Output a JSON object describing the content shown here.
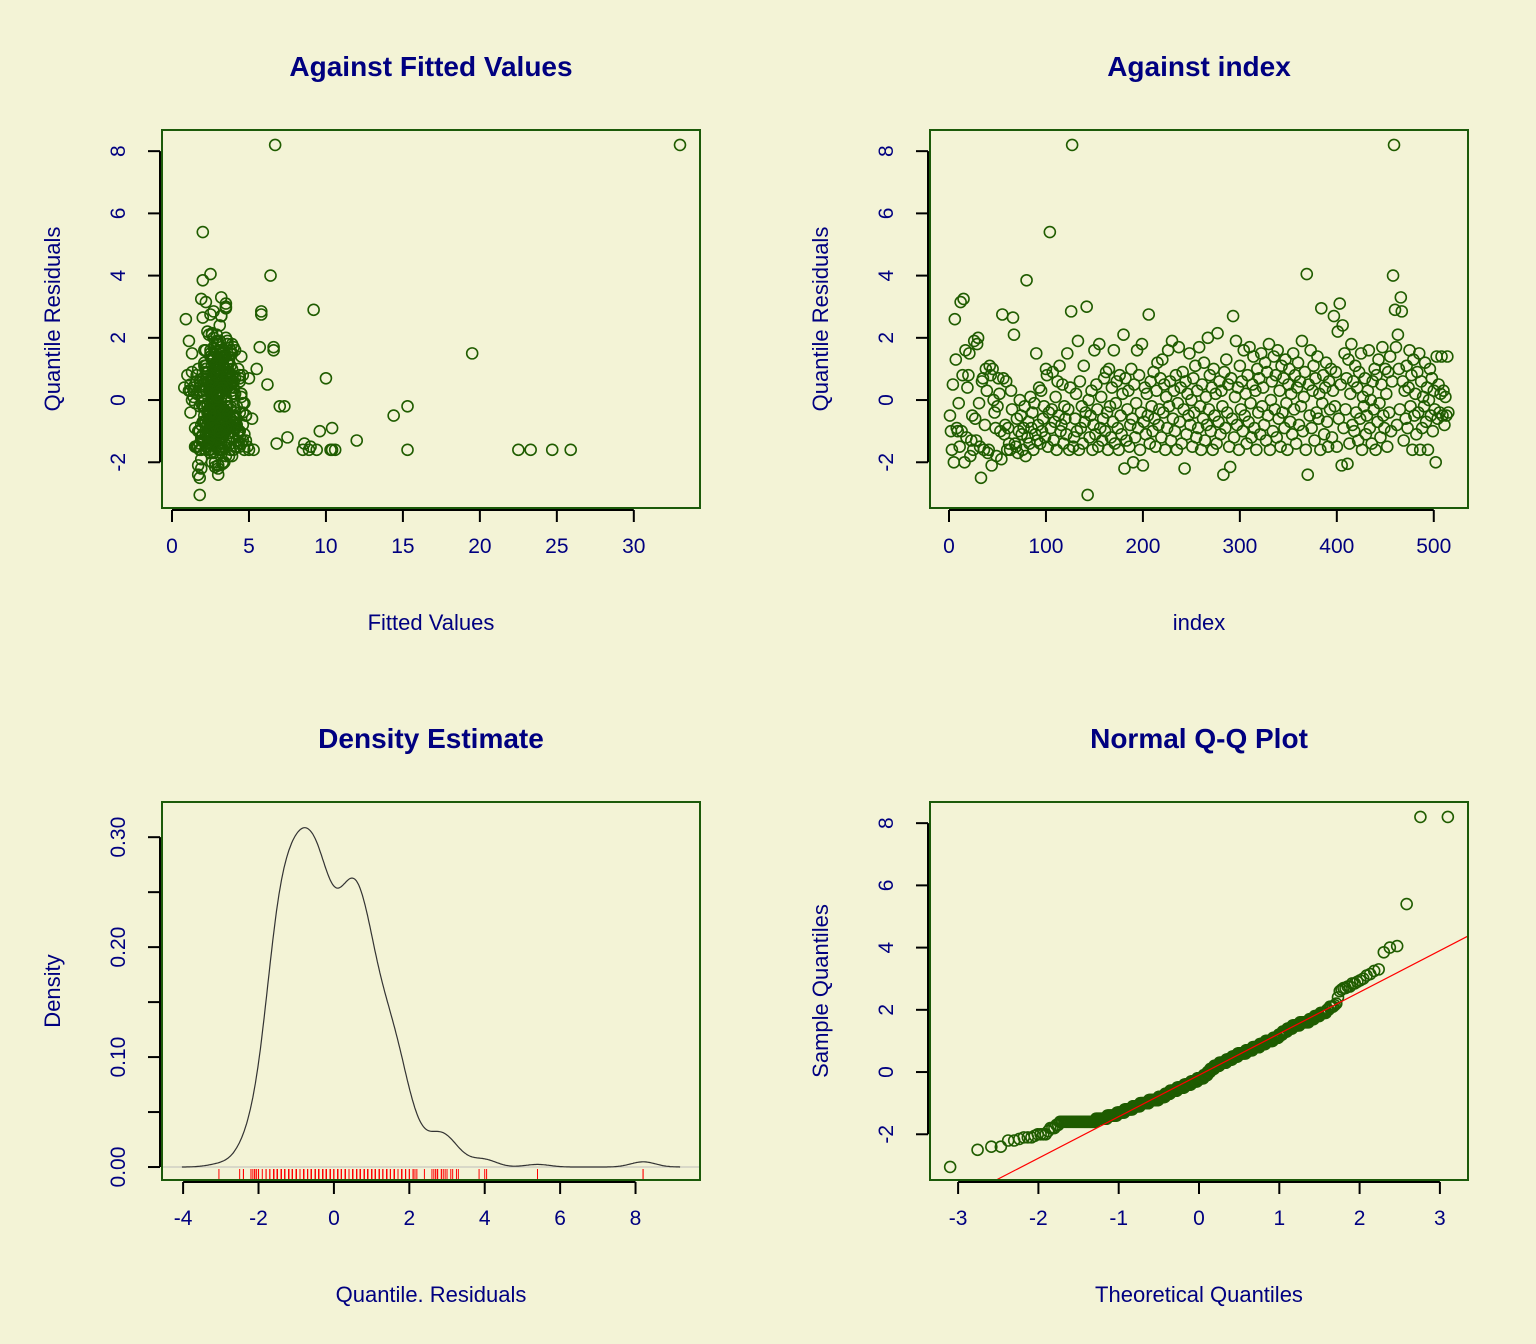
{
  "colors": {
    "background": "#f3f3d6",
    "text": "#000080",
    "frame": "#1b5a0a",
    "points": "#1f5c00",
    "rug": "#ff0000",
    "qqline": "#ff0000",
    "density": "#333333"
  },
  "residuals": [
    -0.5,
    -1.0,
    -1.6,
    0.5,
    -2.0,
    2.6,
    1.3,
    -0.9,
    -1.0,
    -0.1,
    -1.5,
    3.15,
    -1.0,
    0.8,
    3.25,
    -2.0,
    1.6,
    -1.2,
    0.4,
    0.8,
    1.5,
    -1.8,
    -1.3,
    -0.5,
    -1.6,
    1.9,
    -0.6,
    -1.3,
    1.8,
    2.0,
    -0.1,
    -1.5,
    -2.5,
    0.6,
    0.7,
    -1.6,
    -0.8,
    1.0,
    0.3,
    -1.7,
    -1.6,
    1.1,
    0.8,
    -2.1,
    1.0,
    0.0,
    -0.4,
    -0.9,
    -1.8,
    -0.2,
    0.7,
    0.2,
    -1.0,
    -1.9,
    2.75,
    0.7,
    -1.1,
    -0.8,
    0.6,
    -1.6,
    -0.9,
    -1.4,
    -1.6,
    0.3,
    -0.3,
    2.65,
    2.1,
    -1.4,
    -1.5,
    -0.6,
    -1.7,
    -1.0,
    0.0,
    -0.5,
    -1.1,
    -1.6,
    -0.9,
    -0.2,
    -1.8,
    3.85,
    -1.2,
    -0.7,
    -1.4,
    0.1,
    -0.9,
    -0.4,
    -1.6,
    -0.1,
    -1.1,
    1.5,
    -1.3,
    -0.8,
    0.4,
    -1.4,
    0.3,
    -1.0,
    -0.6,
    -0.2,
    -1.2,
    1.0,
    0.8,
    -1.5,
    -0.4,
    5.4,
    -0.9,
    -0.3,
    0.9,
    -1.3,
    -0.7,
    0.1,
    -1.6,
    0.6,
    -0.5,
    1.1,
    -1.0,
    -0.8,
    0.5,
    -1.4,
    -0.2,
    -0.6,
    -1.1,
    1.5,
    -0.3,
    -1.6,
    0.4,
    2.85,
    8.2,
    -1.5,
    -1.2,
    -0.6,
    0.2,
    -1.0,
    1.9,
    -1.6,
    0.6,
    -0.9,
    -0.2,
    -1.4,
    1.1,
    -0.7,
    -0.4,
    3.0,
    -3.05,
    0.0,
    -1.2,
    -0.5,
    0.3,
    -1.6,
    -0.8,
    1.6,
    -1.1,
    0.5,
    -0.3,
    -1.5,
    1.8,
    -0.9,
    0.1,
    -1.3,
    -0.6,
    0.7,
    -1.0,
    0.9,
    -0.4,
    -1.6,
    1.0,
    -0.2,
    -1.2,
    0.4,
    -0.7,
    1.6,
    -1.4,
    -0.1,
    0.6,
    -0.9,
    -1.6,
    0.8,
    -0.5,
    -1.1,
    0.2,
    2.1,
    -2.2,
    0.7,
    -1.3,
    -0.3,
    0.3,
    -1.5,
    -0.8,
    1.0,
    -0.6,
    -2.0,
    0.5,
    -1.2,
    -0.1,
    1.6,
    -0.9,
    0.8,
    -1.6,
    -0.4,
    1.8,
    -2.1,
    -0.7,
    0.4,
    -1.1,
    0.2,
    -0.5,
    2.75,
    -1.4,
    0.6,
    -0.2,
    -1.0,
    0.9,
    -0.6,
    -1.5,
    0.3,
    1.2,
    -0.8,
    -0.3,
    0.7,
    -1.2,
    1.3,
    -0.4,
    0.5,
    -1.6,
    0.1,
    -0.9,
    1.6,
    -0.2,
    0.6,
    -1.3,
    1.9,
    -0.6,
    0.3,
    -1.0,
    0.8,
    -1.6,
    -0.1,
    1.7,
    -0.7,
    0.4,
    -1.4,
    0.9,
    -0.3,
    -2.2,
    0.6,
    -1.1,
    0.2,
    -0.5,
    1.5,
    -0.8,
    0.0,
    -1.5,
    0.7,
    -0.4,
    1.1,
    -1.2,
    0.3,
    -0.9,
    1.7,
    -0.2,
    -1.6,
    0.5,
    -0.6,
    1.2,
    -1.3,
    0.1,
    -0.8,
    2.0,
    -0.3,
    0.8,
    -1.0,
    0.4,
    -1.6,
    1.0,
    -0.5,
    0.2,
    -1.4,
    2.15,
    -0.7,
    0.6,
    -1.1,
    0.3,
    -0.2,
    -2.4,
    0.9,
    -0.9,
    1.3,
    -0.4,
    0.5,
    -1.5,
    -2.15,
    0.7,
    -0.6,
    2.7,
    -1.2,
    0.1,
    1.9,
    -0.8,
    0.4,
    -1.6,
    1.1,
    -0.3,
    0.6,
    -1.0,
    1.6,
    -0.5,
    0.2,
    -1.4,
    0.8,
    -0.7,
    1.7,
    -0.1,
    -1.2,
    0.5,
    1.4,
    -0.9,
    0.3,
    -1.6,
    1.0,
    -0.4,
    0.7,
    -1.1,
    1.5,
    -0.2,
    0.4,
    -0.8,
    1.2,
    -1.3,
    0.9,
    -0.5,
    1.8,
    -1.6,
    0.0,
    0.6,
    -1.0,
    1.4,
    -0.3,
    0.8,
    -1.2,
    1.6,
    -0.6,
    0.3,
    -1.5,
    1.1,
    -0.4,
    0.7,
    -0.9,
    1.3,
    -0.1,
    -1.6,
    0.5,
    1.0,
    -0.7,
    0.2,
    -1.1,
    1.5,
    -0.3,
    0.8,
    -1.4,
    0.4,
    1.2,
    -0.8,
    0.6,
    -0.2,
    1.9,
    -1.0,
    0.1,
    0.9,
    -1.6,
    4.05,
    -2.4,
    0.5,
    -0.5,
    1.6,
    -0.9,
    0.3,
    1.1,
    -1.3,
    0.7,
    -0.4,
    1.4,
    -0.6,
    0.2,
    -1.6,
    2.95,
    -0.1,
    0.8,
    -1.1,
    0.4,
    1.2,
    -0.7,
    -1.5,
    0.6,
    -0.3,
    1.0,
    -1.2,
    0.3,
    2.7,
    -0.2,
    0.9,
    -1.5,
    2.2,
    -0.6,
    3.1,
    0.5,
    -2.1,
    2.4,
    -0.9,
    1.5,
    -0.3,
    0.7,
    -2.05,
    1.3,
    -1.4,
    0.2,
    1.8,
    -0.8,
    0.6,
    -1.0,
    1.1,
    -0.4,
    0.4,
    -1.3,
    0.9,
    -0.6,
    1.5,
    -1.6,
    0.1,
    -0.2,
    0.7,
    -1.1,
    -0.5,
    0.3,
    1.6,
    -0.9,
    0.0,
    -1.4,
    0.6,
    -0.3,
    1.0,
    -1.6,
    0.8,
    -0.7,
    1.3,
    -0.1,
    -1.2,
    0.5,
    1.7,
    -0.5,
    -0.9,
    1.0,
    0.2,
    -1.5,
    0.9,
    -0.4,
    1.4,
    -1.0,
    0.6,
    4.0,
    8.2,
    2.9,
    1.7,
    -0.8,
    2.1,
    1.0,
    -0.3,
    3.3,
    2.85,
    0.6,
    -1.3,
    0.3,
    -0.6,
    1.1,
    -0.9,
    0.4,
    1.6,
    -0.2,
    0.8,
    -1.6,
    1.3,
    -0.5,
    0.2,
    -1.1,
    0.9,
    -0.4,
    1.5,
    -1.6,
    0.6,
    -0.9,
    0.1,
    -0.2,
    1.2,
    -0.7,
    0.4,
    -1.6,
    0.0,
    1.0,
    -0.5,
    0.7,
    -1.0,
    0.3,
    -0.3,
    -2.0,
    1.4,
    -0.6,
    0.5,
    -0.4,
    0.2,
    1.4,
    -0.5,
    0.3,
    -0.8,
    0.1,
    -0.5,
    1.4,
    -0.4
  ],
  "fitted": [
    2.1,
    3.0,
    2.5,
    1.2,
    3.4,
    0.9,
    2.7,
    3.1,
    1.8,
    2.9,
    4.2,
    2.2,
    3.3,
    1.0,
    1.9,
    2.6,
    3.8,
    2.4,
    0.8,
    3.0,
    1.3,
    3.5,
    2.8,
    4.1,
    23.3,
    1.1,
    3.2,
    2.0,
    3.6,
    2.7,
    1.5,
    4.4,
    1.8,
    2.9,
    3.1,
    24.7,
    2.3,
    3.9,
    1.4,
    2.5,
    3.0,
    2.2,
    4.6,
    1.7,
    3.4,
    2.8,
    1.2,
    10.4,
    3.7,
    2.1,
    5.0,
    2.6,
    3.3,
    1.9,
    2.5,
    10.0,
    2.9,
    4.0,
    1.6,
    25.9,
    3.2,
    2.4,
    22.5,
    1.1,
    3.8,
    2.0,
    2.9,
    4.3,
    1.5,
    3.0,
    2.7,
    3.5,
    1.3,
    4.8,
    2.2,
    3.1,
    2.6,
    1.8,
    3.9,
    2.0,
    3.3,
    2.1,
    4.5,
    1.4,
    2.8,
    3.6,
    15.3,
    2.3,
    3.0,
    19.5,
    1.9,
    4.2,
    2.7,
    3.4,
    1.2,
    2.5,
    3.8,
    2.0,
    4.0,
    5.5,
    1.6,
    3.1,
    2.4,
    2.0,
    3.7,
    2.9,
    1.3,
    4.6,
    2.2,
    3.5,
    10.3,
    1.8,
    14.4,
    2.6,
    3.0,
    4.1,
    1.5,
    2.8,
    15.3,
    3.3,
    2.0,
    3.9,
    2.7,
    10.6,
    1.4,
    5.8,
    6.7,
    9.0,
    3.2,
    2.5,
    4.0,
    1.7,
    3.6,
    10.4,
    2.3,
    3.0,
    7.0,
    6.8,
    2.1,
    3.4,
    4.4,
    3.5,
    1.8,
    2.6,
    7.5,
    3.1,
    2.2,
    4.7,
    1.9,
    3.8,
    2.4,
    6.2,
    3.0,
    1.6,
    2.9,
    4.1,
    2.0,
    12.0,
    3.3,
    2.7,
    9.6,
    2.3,
    3.5,
    9.4,
    1.7,
    7.3,
    2.8,
    4.0,
    3.2,
    2.1,
    8.6,
    3.6,
    2.5,
    1.5,
    8.9,
    3.9,
    2.6,
    3.1,
    4.5,
    2.4,
    3.0,
    2.0,
    4.2,
    3.4,
    1.8,
    2.9,
    3.7,
    2.2,
    5.2,
    3.3,
    2.6,
    4.0,
    1.9,
    3.1,
    2.7,
    3.6,
    8.5,
    2.4,
    3.9,
    3.0,
    2.5,
    3.8,
    4.7,
    1.6,
    2.9,
    5.8,
    3.2,
    2.0,
    3.5,
    4.3,
    2.7,
    3.0,
    1.7,
    2.4,
    3.6,
    4.1,
    2.8,
    3.3,
    1.9,
    3.0,
    3.4,
    2.1,
    4.0,
    2.6,
    3.7,
    6.6,
    2.3,
    3.9,
    4.8,
    2.9,
    3.1,
    2.0,
    3.5,
    4.4,
    1.8,
    2.7,
    5.7,
    3.2,
    2.5,
    3.8,
    2.2,
    3.0,
    1.9,
    3.6,
    2.8,
    4.1,
    2.4,
    3.3,
    3.0,
    2.6,
    4.9,
    3.1,
    2.3,
    2.9,
    3.7,
    2.0,
    3.4,
    2.7,
    4.2,
    3.2,
    2.5,
    3.8,
    2.1,
    3.0,
    4.5,
    2.8,
    3.5,
    2.4,
    3.1,
    2.7,
    4.0,
    3.3,
    2.2,
    3.6,
    2.9,
    1.8,
    2.6,
    3.9,
    3.0,
    4.3,
    2.7,
    3.2,
    1.7,
    3.5,
    2.4,
    3.0,
    4.6,
    2.1,
    3.4,
    2.8,
    3.7,
    2.5,
    3.2,
    4.0,
    2.9,
    3.1,
    2.3,
    3.6,
    5.3,
    2.6,
    3.3,
    2.8,
    4.4,
    2.2,
    3.0,
    3.9,
    2.6,
    3.5,
    2.0,
    3.2,
    4.7,
    2.9,
    3.4,
    2.5,
    3.8,
    3.0,
    2.4,
    3.1,
    4.1,
    2.7,
    2.3,
    3.6,
    3.0,
    2.8,
    4.2,
    3.3,
    2.1,
    3.7,
    2.9,
    3.0,
    5.0,
    2.6,
    3.4,
    3.9,
    2.5,
    3.2,
    2.8,
    4.4,
    3.1,
    2.4,
    3.5,
    2.2,
    3.8,
    3.0,
    2.7,
    4.0,
    3.3,
    2.6,
    1.9,
    3.6,
    2.9,
    3.2,
    4.5,
    2.4,
    3.1,
    2.8,
    3.7,
    2.3,
    3.4,
    3.0,
    2.8,
    3.5,
    2.5,
    3.1,
    4.3,
    2.9,
    3.6,
    2.2,
    2.5,
    3.0,
    3.3,
    2.7,
    4.1,
    2.6,
    3.9,
    3.0,
    2.4,
    3.5,
    2.8,
    3.2,
    3.1,
    2.6,
    3.8,
    3.5,
    4.6,
    2.9,
    3.3,
    2.5,
    3.7,
    3.0,
    2.3,
    4.0,
    2.8,
    3.4,
    3.1,
    2.6,
    3.2,
    3.6,
    2.9,
    4.2,
    2.3,
    3.4,
    3.5,
    2.7,
    3.0,
    3.1,
    2.5,
    3.8,
    2.9,
    4.4,
    3.3,
    2.6,
    3.2,
    2.8,
    3.6,
    3.0,
    2.4,
    3.9,
    3.1,
    2.7,
    3.5,
    3.0,
    2.8,
    4.1,
    2.5,
    3.3,
    2.9,
    3.6,
    2.2,
    3.2,
    4.8,
    2.7,
    3.4,
    3.0,
    2.6,
    3.8,
    3.1,
    2.9,
    4.3,
    2.4,
    3.2,
    2.8,
    3.7,
    3.0,
    2.5,
    3.5,
    4.0,
    2.7,
    3.3,
    2.9,
    3.1,
    2.3,
    3.6,
    2.8,
    4.5,
    3.0,
    2.6,
    6.4,
    33.0,
    9.2,
    6.6,
    3.0,
    2.6,
    3.4,
    2.9,
    3.2,
    2.7,
    3.6,
    2.4,
    3.1,
    4.2,
    2.8,
    3.5,
    3.0,
    2.5,
    3.8,
    2.9,
    3.3,
    2.6,
    4.0,
    2.8,
    3.1,
    2.7,
    3.5,
    2.9,
    3.0,
    4.4,
    2.6,
    3.2,
    2.8,
    3.7,
    2.4,
    3.3,
    3.0,
    2.7,
    3.6,
    2.9,
    4.1,
    3.1,
    2.5,
    3.0,
    2.8,
    3.4,
    2.6,
    3.9,
    3.1,
    2.9,
    3.5,
    2.7,
    3.2,
    4.6,
    3.0,
    2.8,
    3.3,
    2.5
  ],
  "chart_data": [
    {
      "type": "scatter",
      "title": "Against Fitted Values",
      "xlabel": "Fitted Values",
      "ylabel": "Quantile Residuals",
      "x_source": "fitted",
      "y_source": "residuals",
      "xlim": [
        -0.65,
        34.3
      ],
      "ylim": [
        -3.47,
        8.68
      ],
      "xticks": [
        "0",
        "5",
        "10",
        "15",
        "20",
        "25",
        "30"
      ],
      "yticks": [
        "-2",
        "0",
        "2",
        "4",
        "6",
        "8"
      ]
    },
    {
      "type": "scatter",
      "title": "Against  index",
      "xlabel": "index",
      "ylabel": "Quantile Residuals",
      "x_source": "index",
      "y_source": "residuals",
      "xlim": [
        -19.6,
        535.3
      ],
      "ylim": [
        -3.47,
        8.68
      ],
      "xticks": [
        "0",
        "100",
        "200",
        "300",
        "400",
        "500"
      ],
      "yticks": [
        "-2",
        "0",
        "2",
        "4",
        "6",
        "8"
      ]
    },
    {
      "type": "line",
      "title": "Density Estimate",
      "xlabel": "Quantile. Residuals",
      "ylabel": "Density",
      "source": "residuals",
      "rug": true,
      "xlim": [
        -4.56,
        9.71
      ],
      "ylim": [
        -0.0118,
        0.332
      ],
      "xticks": [
        "-4",
        "-2",
        "0",
        "2",
        "4",
        "6",
        "8"
      ],
      "yticks": [
        "0.00",
        "0.10",
        "0.20",
        "0.30"
      ],
      "yminor_step": 0.05
    },
    {
      "type": "scatter",
      "title": "Normal Q-Q Plot",
      "xlabel": "Theoretical Quantiles",
      "ylabel": "Sample Quantiles",
      "source": "residuals",
      "reference_line": true,
      "xlim": [
        -3.35,
        3.35
      ],
      "ylim": [
        -3.47,
        8.68
      ],
      "xticks": [
        "-3",
        "-2",
        "-1",
        "0",
        "1",
        "2",
        "3"
      ],
      "yticks": [
        "-2",
        "0",
        "2",
        "4",
        "6",
        "8"
      ]
    }
  ]
}
